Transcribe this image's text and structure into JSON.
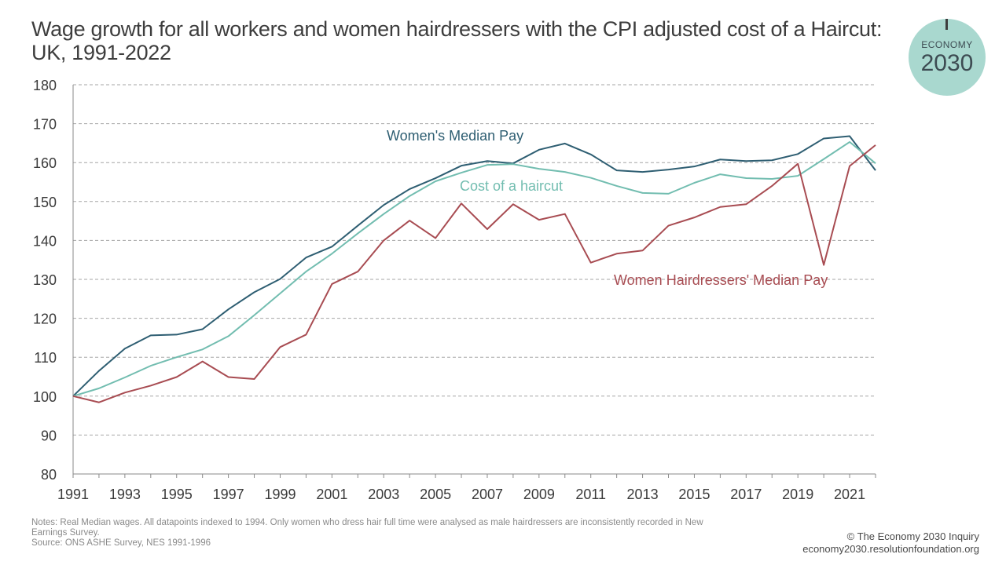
{
  "title_line1": "Wage growth for all workers and women hairdressers with the CPI adjusted cost of a Haircut:",
  "title_line2": "UK, 1991-2022",
  "logo": {
    "line1": "ECONOMY",
    "line2": "2030",
    "color": "#a9d8cf"
  },
  "notes_line1": "Notes: Real Median wages. All datapoints indexed to 1994. Only women who dress hair full time were analysed as male hairdressers are inconsistently recorded in New",
  "notes_line2": "Earnings Survey.",
  "source": "Source: ONS ASHE Survey, NES 1991-1996",
  "credit_line1": "© The Economy 2030 Inquiry",
  "credit_line2": "economy2030.resolutionfoundation.org",
  "chart_data": {
    "type": "line",
    "x": [
      1991,
      1992,
      1993,
      1994,
      1995,
      1996,
      1997,
      1998,
      1999,
      2000,
      2001,
      2002,
      2003,
      2004,
      2005,
      2006,
      2007,
      2008,
      2009,
      2010,
      2011,
      2012,
      2013,
      2014,
      2015,
      2016,
      2017,
      2018,
      2019,
      2020,
      2021,
      2022
    ],
    "xticks": [
      "1991",
      "1993",
      "1995",
      "1997",
      "1999",
      "2001",
      "2003",
      "2005",
      "2007",
      "2009",
      "2011",
      "2013",
      "2015",
      "2017",
      "2019",
      "2021"
    ],
    "yticks": [
      "80",
      "90",
      "100",
      "110",
      "120",
      "130",
      "140",
      "150",
      "160",
      "170",
      "180"
    ],
    "ylim": [
      80,
      180
    ],
    "xlim": [
      1991,
      2022
    ],
    "grid": "horizontal-dashed",
    "series": [
      {
        "name": "Women's Median Pay",
        "color": "#2e5e72",
        "values": [
          100,
          106.5,
          112.2,
          115.6,
          115.8,
          117.2,
          122.3,
          126.7,
          130.1,
          135.6,
          138.4,
          143.8,
          149.1,
          153.2,
          156.0,
          159.2,
          160.4,
          159.8,
          163.3,
          164.9,
          162.1,
          158.0,
          157.6,
          158.2,
          159.0,
          160.8,
          160.4,
          160.6,
          162.2,
          166.2,
          166.8,
          158.0
        ]
      },
      {
        "name": "Cost of a haircut",
        "color": "#72bdb0",
        "values": [
          100,
          102.0,
          104.8,
          107.8,
          110.0,
          112.0,
          115.4,
          120.8,
          126.4,
          132.0,
          136.6,
          141.8,
          146.8,
          151.4,
          155.2,
          157.4,
          159.4,
          159.6,
          158.4,
          157.6,
          156.1,
          154.0,
          152.2,
          152.0,
          154.8,
          157.0,
          156.0,
          155.8,
          156.6,
          160.9,
          165.3,
          159.8
        ]
      },
      {
        "name": "Women Hairdressers' Median Pay",
        "color": "#a84c52",
        "values": [
          100,
          98.4,
          100.9,
          102.7,
          104.9,
          108.9,
          104.9,
          104.4,
          112.6,
          115.8,
          128.8,
          132.0,
          140.0,
          145.1,
          140.6,
          149.5,
          142.9,
          149.3,
          145.3,
          146.8,
          134.3,
          136.6,
          137.4,
          143.8,
          145.9,
          148.6,
          149.3,
          154.0,
          159.7,
          133.7,
          159.1,
          164.5
        ]
      }
    ]
  }
}
